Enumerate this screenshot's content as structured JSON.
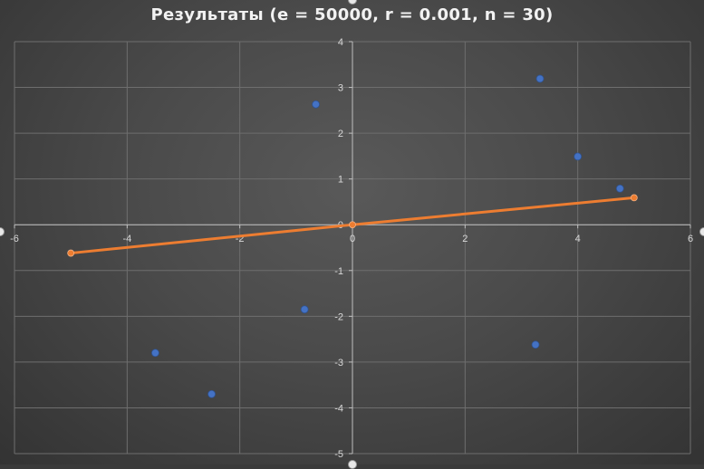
{
  "chart_data": {
    "type": "scatter",
    "title": "Результаты (e = 50000, r = 0.001, n = 30)",
    "xlabel": "",
    "ylabel": "",
    "xlim": [
      -6,
      6
    ],
    "ylim": [
      -5,
      4
    ],
    "x_ticks": [
      -6,
      -4,
      -2,
      0,
      2,
      4,
      6
    ],
    "y_ticks": [
      -5,
      -4,
      -3,
      -2,
      -1,
      0,
      1,
      2,
      3,
      4
    ],
    "x_tick_labels": [
      "-6",
      "-4",
      "-2",
      "0",
      "2",
      "4",
      "6"
    ],
    "y_tick_labels": [
      "-5",
      "-4",
      "-3",
      "-2",
      "-1",
      "0",
      "1",
      "2",
      "3",
      "4"
    ],
    "grid": true,
    "legend": "none",
    "series": [
      {
        "kind": "scatter",
        "color": "#4472c4",
        "points": [
          {
            "x": -3.5,
            "y": -2.8
          },
          {
            "x": -2.5,
            "y": -3.7
          },
          {
            "x": -0.85,
            "y": -1.85
          },
          {
            "x": -0.65,
            "y": 2.63
          },
          {
            "x": 3.25,
            "y": -2.62
          },
          {
            "x": 3.33,
            "y": 3.19
          },
          {
            "x": 4.0,
            "y": 1.49
          },
          {
            "x": 4.75,
            "y": 0.79
          }
        ]
      },
      {
        "kind": "line",
        "color": "#ed7d31",
        "points": [
          {
            "x": -5,
            "y": -0.62
          },
          {
            "x": 0,
            "y": 0
          },
          {
            "x": 5,
            "y": 0.59
          }
        ]
      }
    ]
  }
}
